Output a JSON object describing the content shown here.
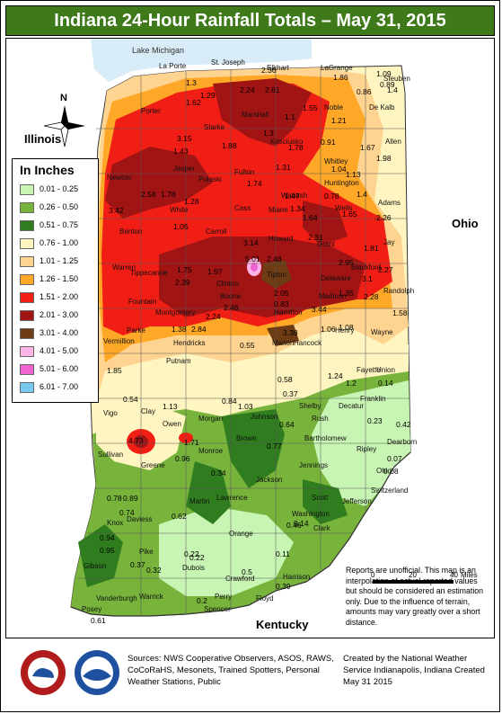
{
  "title": "Indiana 24-Hour Rainfall Totals – May 31, 2015",
  "legend": {
    "title": "In Inches",
    "items": [
      {
        "label": "0.01 - 0.25",
        "color": "#c8f5b4"
      },
      {
        "label": "0.26 - 0.50",
        "color": "#78b43c"
      },
      {
        "label": "0.51 - 0.75",
        "color": "#2f7d1e"
      },
      {
        "label": "0.76 - 1.00",
        "color": "#fff5c0"
      },
      {
        "label": "1.01 - 1.25",
        "color": "#ffd490"
      },
      {
        "label": "1.26 - 1.50",
        "color": "#ffa828"
      },
      {
        "label": "1.51 - 2.00",
        "color": "#f01e14"
      },
      {
        "label": "2.01 - 3.00",
        "color": "#a01414"
      },
      {
        "label": "3.01 - 4.00",
        "color": "#6e3c14"
      },
      {
        "label": "4.01 - 5.00",
        "color": "#ffb4e6"
      },
      {
        "label": "5.01 - 6.00",
        "color": "#f064d2"
      },
      {
        "label": "6.01 - 7.00",
        "color": "#78c8f0"
      }
    ]
  },
  "states": {
    "illinois": "Illinois",
    "ohio": "Ohio",
    "kentucky": "Kentucky"
  },
  "lake": "Lake Michigan",
  "compass": "N",
  "scale": {
    "labels": [
      "0",
      "20",
      "40"
    ],
    "unit": "Miles"
  },
  "counties": [
    "La Porte",
    "St. Joseph",
    "Elkhart",
    "LaGrange",
    "Steuben",
    "Porter",
    "Starke",
    "Marshall",
    "Kosciusko",
    "Noble",
    "De Kalb",
    "Allen",
    "Whitley",
    "Jasper",
    "Pulaski",
    "Fulton",
    "Newton",
    "Wabash",
    "Huntington",
    "Wells",
    "Adams",
    "White",
    "Cass",
    "Miami",
    "Carroll",
    "Benton",
    "Howard",
    "Grant",
    "Blackford",
    "Jay",
    "Tippecanoe",
    "Warren",
    "Tipton",
    "Delaware",
    "Randolph",
    "Clinton",
    "Fountain",
    "Boone",
    "Madison",
    "Montgomery",
    "Hamilton",
    "Parke",
    "Henry",
    "Wayne",
    "Vermillion",
    "Hendricks",
    "Marion",
    "Hancock",
    "Putnam",
    "Fayette",
    "Union",
    "Vigo",
    "Clay",
    "Owen",
    "Morgan",
    "Johnson",
    "Shelby",
    "Decatur",
    "Rush",
    "Franklin",
    "Brown",
    "Bartholomew",
    "Monroe",
    "Greene",
    "Sullivan",
    "Ripley",
    "Dearborn",
    "Ohio",
    "Jennings",
    "Switzerland",
    "Jackson",
    "Lawrence",
    "Martin",
    "Daviess",
    "Knox",
    "Scott",
    "Jefferson",
    "Washington",
    "Clark",
    "Orange",
    "Dubois",
    "Pike",
    "Gibson",
    "Crawford",
    "Harrison",
    "Floyd",
    "Vanderburgh",
    "Posey",
    "Warrick",
    "Spencer",
    "Perry"
  ],
  "observations": [
    "2.36",
    "1.86",
    "1.09",
    "0.89",
    "0.86",
    "1.4",
    "1.3",
    "1.29",
    "2.24",
    "2.61",
    "1.62",
    "1.55",
    "1.21",
    "1.1",
    "1.43",
    "3.15",
    "1.88",
    "1.3",
    "1.78",
    "0.91",
    "1.67",
    "1.98",
    "1.31",
    "1.04",
    "1.13",
    "1.74",
    "1.47",
    "1.34",
    "0.78",
    "1.4",
    "1.28",
    "1.05",
    "1.64",
    "1.65",
    "2.26",
    "3.42",
    "2.58",
    "1.78",
    "3.14",
    "2.31",
    "5.01",
    "2.48",
    "1.97",
    "2.05",
    "2.95",
    "1.81",
    "2.27",
    "1.75",
    "2.39",
    "3.1",
    "2.46",
    "2.24",
    "0.83",
    "3.44",
    "1.35",
    "2.28",
    "1.58",
    "1.38",
    "2.84",
    "3.38",
    "1.06",
    "1.08",
    "1.85",
    "0.55",
    "0.58",
    "1.24",
    "1.2",
    "0.14",
    "0.54",
    "1.13",
    "0.84",
    "1.03",
    "0.37",
    "0.23",
    "0.42",
    "4.73",
    "1.71",
    "0.96",
    "0.64",
    "0.77",
    "0.07",
    "0.08",
    "0.34",
    "0.78",
    "0.89",
    "0.74",
    "0.62",
    "0.46",
    "0.14",
    "0.94",
    "0.95",
    "0.37",
    "0.32",
    "0.22",
    "0.5",
    "0.11",
    "0.39",
    "0.22",
    "0.2",
    "0.61"
  ],
  "notes": "Reports are unofficial. This map is an interpolation of actual reported values but should be considered an estimation only. Due to the influence of terrain, amounts may vary greatly over a short distance.",
  "sources": "Sources: NWS Cooperative Observers, ASOS, RAWS, CoCoRaHS, Mesonets, Trained Spotters, Personal Weather Stations, Public",
  "credit": "Created by the National Weather Service Indianapolis, Indiana Created May 31 2015",
  "logos": {
    "nws": "National Weather Service",
    "noaa": "NOAA"
  }
}
